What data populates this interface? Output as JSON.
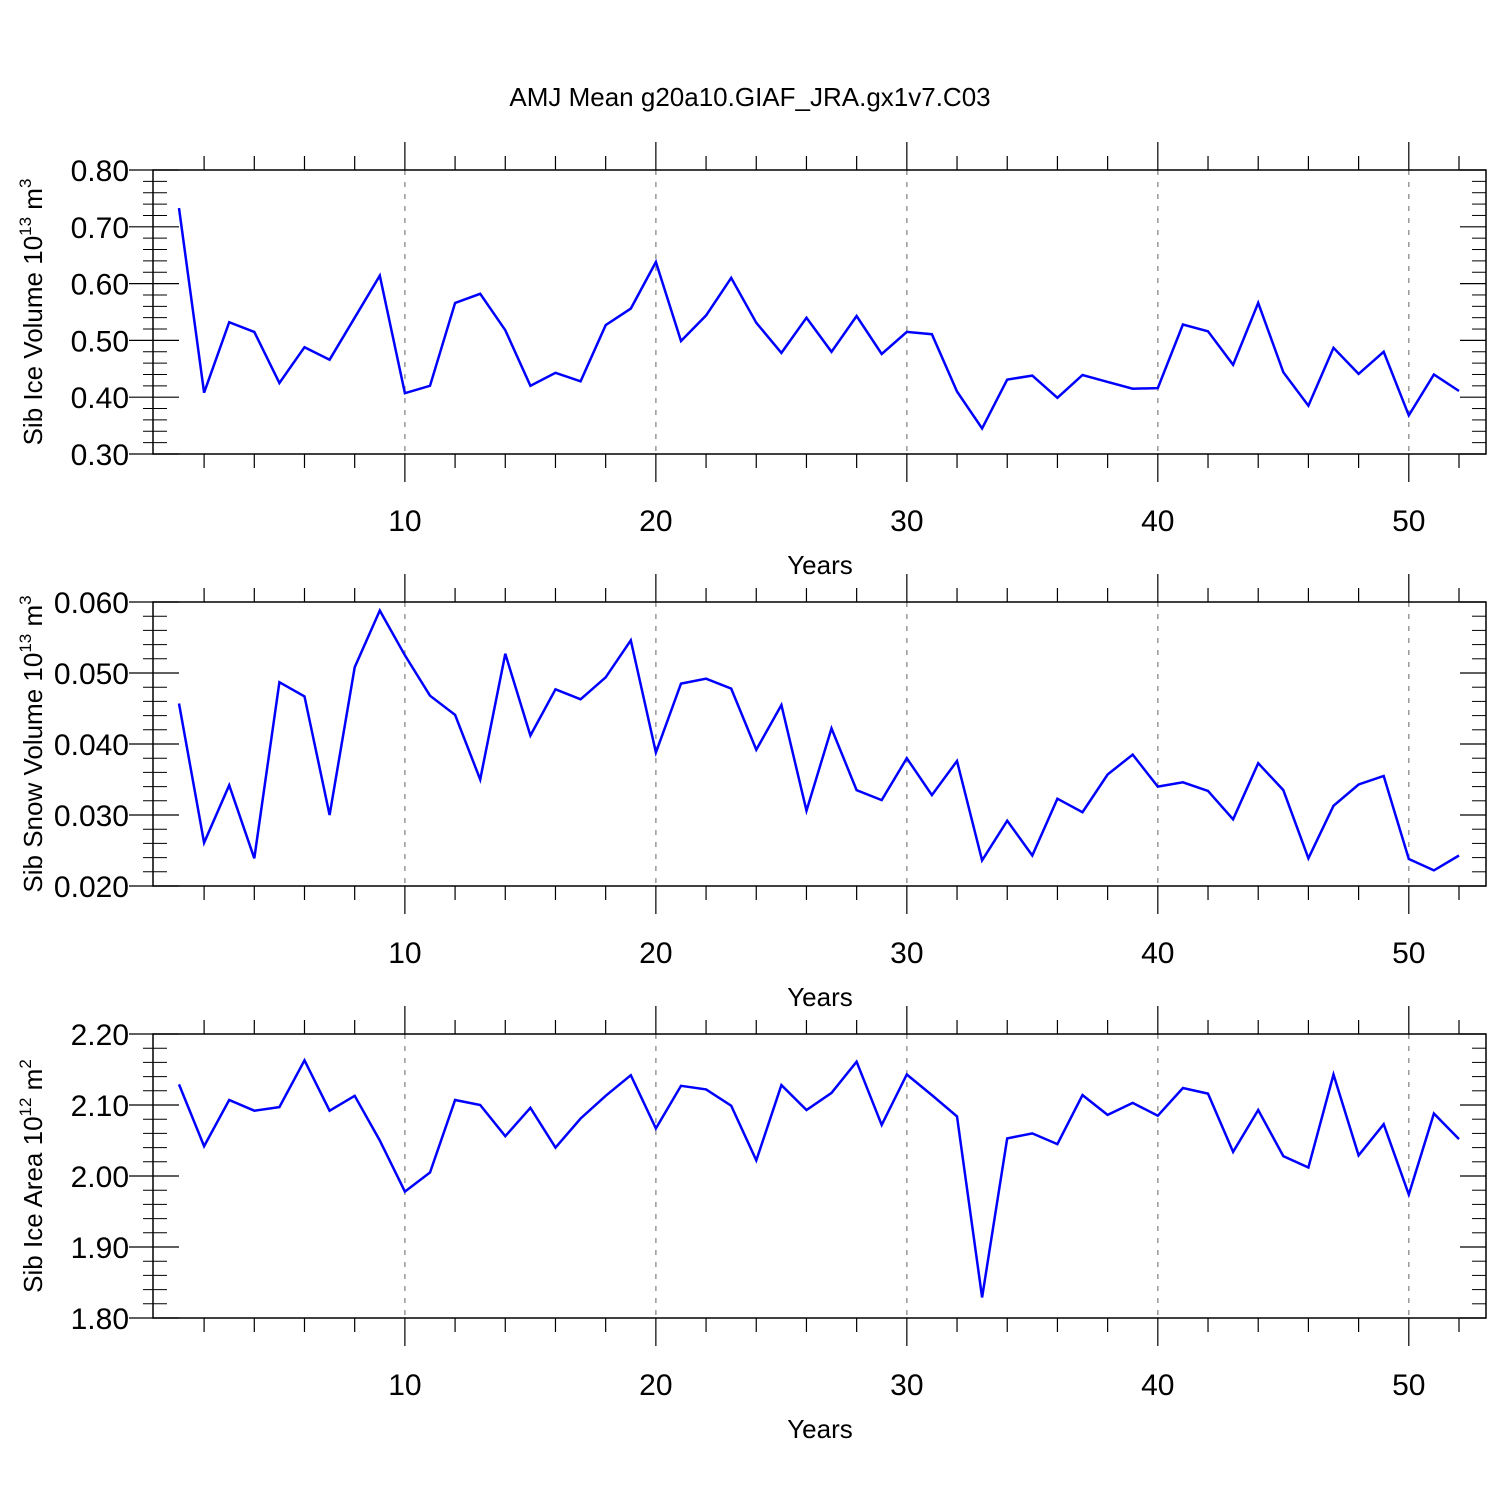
{
  "figure": {
    "title": "AMJ Mean g20a10.GIAF_JRA.gx1v7.C03",
    "line_color": "#0000ff"
  },
  "chart_data": [
    {
      "type": "line",
      "xlabel": "Years",
      "ylabel": {
        "prefix": "Sib Ice Volume 10",
        "exp": "13",
        "unit": " m",
        "unit_exp": "3"
      },
      "xlim": [
        1,
        52
      ],
      "ylim": [
        0.3,
        0.8
      ],
      "x_major_ticks": [
        10,
        20,
        30,
        40,
        50
      ],
      "x_tick_labels": [
        "10",
        "20",
        "30",
        "40",
        "50"
      ],
      "y_major_ticks": [
        0.3,
        0.4,
        0.5,
        0.6,
        0.7,
        0.8
      ],
      "y_tick_labels": [
        "0.30",
        "0.40",
        "0.50",
        "0.60",
        "0.70",
        "0.80"
      ],
      "grid": "vertical dashed at major x ticks",
      "x": [
        1,
        2,
        3,
        4,
        5,
        6,
        7,
        8,
        9,
        10,
        11,
        12,
        13,
        14,
        15,
        16,
        17,
        18,
        19,
        20,
        21,
        22,
        23,
        24,
        25,
        26,
        27,
        28,
        29,
        30,
        31,
        32,
        33,
        34,
        35,
        36,
        37,
        38,
        39,
        40,
        41,
        42,
        43,
        44,
        45,
        46,
        47,
        48,
        49,
        50,
        51,
        52
      ],
      "values": [
        0.733,
        0.408,
        0.532,
        0.515,
        0.425,
        0.488,
        0.466,
        0.54,
        0.614,
        0.407,
        0.42,
        0.566,
        0.582,
        0.518,
        0.42,
        0.443,
        0.428,
        0.527,
        0.556,
        0.638,
        0.499,
        0.544,
        0.61,
        0.531,
        0.478,
        0.54,
        0.48,
        0.543,
        0.476,
        0.515,
        0.511,
        0.41,
        0.345,
        0.431,
        0.438,
        0.399,
        0.439,
        0.427,
        0.415,
        0.416,
        0.528,
        0.516,
        0.457,
        0.566,
        0.444,
        0.385,
        0.487,
        0.441,
        0.48,
        0.368,
        0.44,
        0.411
      ]
    },
    {
      "type": "line",
      "xlabel": "Years",
      "ylabel": {
        "prefix": "Sib Snow Volume 10",
        "exp": "13",
        "unit": " m",
        "unit_exp": "3"
      },
      "xlim": [
        1,
        52
      ],
      "ylim": [
        0.02,
        0.06
      ],
      "x_major_ticks": [
        10,
        20,
        30,
        40,
        50
      ],
      "x_tick_labels": [
        "10",
        "20",
        "30",
        "40",
        "50"
      ],
      "y_major_ticks": [
        0.02,
        0.03,
        0.04,
        0.05,
        0.06
      ],
      "y_tick_labels": [
        "0.020",
        "0.030",
        "0.040",
        "0.050",
        "0.060"
      ],
      "grid": "vertical dashed at major x ticks",
      "x": [
        1,
        2,
        3,
        4,
        5,
        6,
        7,
        8,
        9,
        10,
        11,
        12,
        13,
        14,
        15,
        16,
        17,
        18,
        19,
        20,
        21,
        22,
        23,
        24,
        25,
        26,
        27,
        28,
        29,
        30,
        31,
        32,
        33,
        34,
        35,
        36,
        37,
        38,
        39,
        40,
        41,
        42,
        43,
        44,
        45,
        46,
        47,
        48,
        49,
        50,
        51,
        52
      ],
      "values": [
        0.0457,
        0.0261,
        0.0342,
        0.0239,
        0.0487,
        0.0467,
        0.03,
        0.0508,
        0.0588,
        0.0525,
        0.0468,
        0.0441,
        0.035,
        0.0527,
        0.0412,
        0.0477,
        0.0463,
        0.0494,
        0.0546,
        0.0388,
        0.0485,
        0.0492,
        0.0478,
        0.0392,
        0.0455,
        0.0306,
        0.0422,
        0.0335,
        0.0321,
        0.038,
        0.0328,
        0.0376,
        0.0236,
        0.0292,
        0.0243,
        0.0323,
        0.0304,
        0.0357,
        0.0385,
        0.034,
        0.0346,
        0.0334,
        0.0294,
        0.0373,
        0.0335,
        0.0239,
        0.0313,
        0.0343,
        0.0355,
        0.0238,
        0.0222,
        0.0243
      ]
    },
    {
      "type": "line",
      "xlabel": "Years",
      "ylabel": {
        "prefix": "Sib Ice Area 10",
        "exp": "12",
        "unit": " m",
        "unit_exp": "2"
      },
      "xlim": [
        1,
        52
      ],
      "ylim": [
        1.8,
        2.2
      ],
      "x_major_ticks": [
        10,
        20,
        30,
        40,
        50
      ],
      "x_tick_labels": [
        "10",
        "20",
        "30",
        "40",
        "50"
      ],
      "y_major_ticks": [
        1.8,
        1.9,
        2.0,
        2.1,
        2.2
      ],
      "y_tick_labels": [
        "1.80",
        "1.90",
        "2.00",
        "2.10",
        "2.20"
      ],
      "grid": "vertical dashed at major x ticks",
      "x": [
        1,
        2,
        3,
        4,
        5,
        6,
        7,
        8,
        9,
        10,
        11,
        12,
        13,
        14,
        15,
        16,
        17,
        18,
        19,
        20,
        21,
        22,
        23,
        24,
        25,
        26,
        27,
        28,
        29,
        30,
        31,
        32,
        33,
        34,
        35,
        36,
        37,
        38,
        39,
        40,
        41,
        42,
        43,
        44,
        45,
        46,
        47,
        48,
        49,
        50,
        51,
        52
      ],
      "values": [
        2.129,
        2.042,
        2.107,
        2.092,
        2.097,
        2.163,
        2.092,
        2.113,
        2.05,
        1.978,
        2.005,
        2.107,
        2.1,
        2.056,
        2.096,
        2.04,
        2.081,
        2.113,
        2.142,
        2.067,
        2.127,
        2.122,
        2.099,
        2.022,
        2.128,
        2.093,
        2.117,
        2.161,
        2.072,
        2.143,
        2.114,
        2.084,
        1.829,
        2.053,
        2.06,
        2.045,
        2.114,
        2.086,
        2.103,
        2.085,
        2.124,
        2.116,
        2.034,
        2.093,
        2.028,
        2.012,
        2.143,
        2.029,
        2.073,
        1.974,
        2.088,
        2.052
      ]
    }
  ]
}
